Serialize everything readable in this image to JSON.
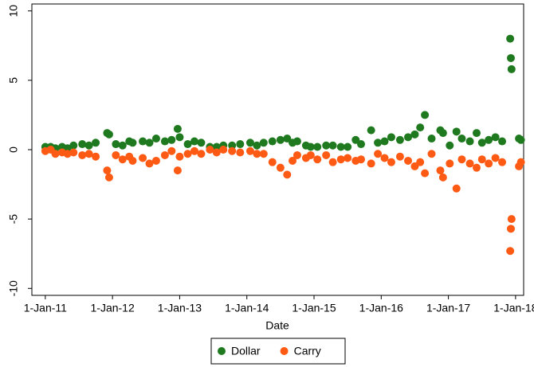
{
  "chart_data": {
    "type": "scatter",
    "x_label": "Date",
    "x": [
      2011.0,
      2011.08,
      2011.15,
      2011.25,
      2011.33,
      2011.42,
      2011.55,
      2011.65,
      2011.75,
      2011.92,
      2011.95,
      2012.05,
      2012.15,
      2012.25,
      2012.3,
      2012.45,
      2012.55,
      2012.65,
      2012.78,
      2012.88,
      2012.97,
      2013.0,
      2013.12,
      2013.22,
      2013.32,
      2013.45,
      2013.55,
      2013.65,
      2013.78,
      2013.9,
      2014.05,
      2014.15,
      2014.25,
      2014.38,
      2014.5,
      2014.6,
      2014.68,
      2014.75,
      2014.88,
      2014.95,
      2015.05,
      2015.18,
      2015.28,
      2015.4,
      2015.5,
      2015.62,
      2015.7,
      2015.85,
      2015.95,
      2016.05,
      2016.15,
      2016.28,
      2016.4,
      2016.5,
      2016.58,
      2016.65,
      2016.75,
      2016.88,
      2016.92,
      2017.02,
      2017.12,
      2017.2,
      2017.32,
      2017.42,
      2017.5,
      2017.6,
      2017.7,
      2017.8,
      2017.92,
      2017.93,
      2017.94,
      2018.05,
      2018.08
    ],
    "series": [
      {
        "name": "Dollar",
        "color": "#1f7a1f",
        "values": [
          0.2,
          0.2,
          0.1,
          0.2,
          0.1,
          0.3,
          0.4,
          0.3,
          0.5,
          1.2,
          1.1,
          0.4,
          0.3,
          0.6,
          0.5,
          0.6,
          0.5,
          0.8,
          0.6,
          0.7,
          1.5,
          0.9,
          0.4,
          0.6,
          0.5,
          0.2,
          0.2,
          0.3,
          0.3,
          0.4,
          0.5,
          0.3,
          0.5,
          0.6,
          0.7,
          0.8,
          0.5,
          0.6,
          0.3,
          0.2,
          0.2,
          0.3,
          0.3,
          0.2,
          0.2,
          0.7,
          0.4,
          1.4,
          0.5,
          0.6,
          0.9,
          0.7,
          0.9,
          1.1,
          1.6,
          2.5,
          0.8,
          1.4,
          1.2,
          0.3,
          1.3,
          0.8,
          0.6,
          1.2,
          0.5,
          0.7,
          0.9,
          0.6,
          8.0,
          6.6,
          5.8,
          0.8,
          0.7
        ]
      },
      {
        "name": "Carry",
        "color": "#ff5a14",
        "values": [
          -0.1,
          0.0,
          -0.3,
          -0.2,
          -0.3,
          -0.2,
          -0.4,
          -0.3,
          -0.5,
          -1.5,
          -2.0,
          -0.4,
          -0.7,
          -0.5,
          -0.8,
          -0.6,
          -1.0,
          -0.8,
          -0.4,
          -0.1,
          -1.5,
          -0.5,
          -0.3,
          -0.1,
          -0.3,
          0.0,
          -0.2,
          0.0,
          -0.1,
          -0.2,
          -0.1,
          -0.3,
          -0.3,
          -0.9,
          -1.3,
          -1.8,
          -0.8,
          -0.4,
          -0.6,
          -0.4,
          -0.7,
          -0.4,
          -0.9,
          -0.7,
          -0.6,
          -0.8,
          -0.7,
          -1.0,
          -0.3,
          -0.6,
          -0.9,
          -0.5,
          -0.8,
          -1.2,
          -0.9,
          -1.7,
          -0.3,
          -1.5,
          -2.0,
          -1.0,
          -2.8,
          -0.7,
          -1.0,
          -1.3,
          -0.7,
          -1.0,
          -0.6,
          -0.9,
          -7.3,
          -5.7,
          -5.0,
          -1.2,
          -0.9
        ]
      }
    ],
    "xlim": [
      2010.8,
      2018.12
    ],
    "xticks": [
      {
        "value": 2011,
        "label": "1-Jan-11"
      },
      {
        "value": 2012,
        "label": "1-Jan-12"
      },
      {
        "value": 2013,
        "label": "1-Jan-13"
      },
      {
        "value": 2014,
        "label": "1-Jan-14"
      },
      {
        "value": 2015,
        "label": "1-Jan-15"
      },
      {
        "value": 2016,
        "label": "1-Jan-16"
      },
      {
        "value": 2017,
        "label": "1-Jan-17"
      },
      {
        "value": 2018,
        "label": "1-Jan-18"
      }
    ],
    "ylim": [
      -10.5,
      10.5
    ],
    "yticks": [
      -10,
      -5,
      0,
      5,
      10
    ],
    "legend": "bottom"
  }
}
